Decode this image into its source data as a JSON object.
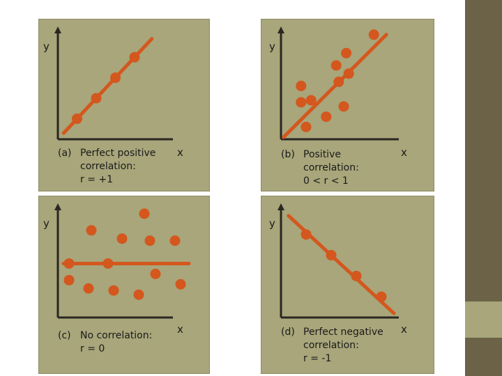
{
  "colors": {
    "panel_bg": "#a8a67a",
    "accent": "#d4571e",
    "axis": "#2a2622",
    "strip_dark": "#6b6248"
  },
  "chart_data": [
    {
      "type": "scatter",
      "y_axis_label": "y",
      "x_axis_label": "x",
      "caption": {
        "letter": "(a)",
        "lines": [
          "Perfect positive",
          "correlation:",
          "r = +1"
        ]
      },
      "points": [
        [
          1,
          1
        ],
        [
          2,
          2
        ],
        [
          3,
          3
        ],
        [
          4,
          4
        ]
      ],
      "fit_line": [
        [
          0.3,
          0.3
        ],
        [
          4.9,
          4.9
        ]
      ],
      "xlim": [
        0,
        6
      ],
      "ylim": [
        0,
        5.5
      ]
    },
    {
      "type": "scatter",
      "y_axis_label": "y",
      "x_axis_label": "x",
      "caption": {
        "letter": "(b)",
        "lines": [
          "Positive",
          "correlation:",
          "0 < r < 1"
        ]
      },
      "points": [
        [
          0.8,
          2.6
        ],
        [
          0.8,
          1.8
        ],
        [
          1.2,
          1.9
        ],
        [
          1.0,
          0.6
        ],
        [
          1.8,
          1.1
        ],
        [
          2.2,
          3.6
        ],
        [
          2.3,
          2.8
        ],
        [
          2.6,
          4.2
        ],
        [
          2.7,
          3.2
        ],
        [
          3.7,
          5.1
        ],
        [
          2.5,
          1.6
        ]
      ],
      "fit_line": [
        [
          0.1,
          0.1
        ],
        [
          4.2,
          5.1
        ]
      ],
      "xlim": [
        0,
        5
      ],
      "ylim": [
        0,
        5.5
      ]
    },
    {
      "type": "scatter",
      "y_axis_label": "y",
      "x_axis_label": "x",
      "caption": {
        "letter": "(c)",
        "lines": [
          "No correlation:",
          "r = 0"
        ]
      },
      "points": [
        [
          1.2,
          4.2
        ],
        [
          3.1,
          5.0
        ],
        [
          2.3,
          3.8
        ],
        [
          3.3,
          3.7
        ],
        [
          4.2,
          3.7
        ],
        [
          0.4,
          2.6
        ],
        [
          1.8,
          2.6
        ],
        [
          3.5,
          2.1
        ],
        [
          0.4,
          1.8
        ],
        [
          1.1,
          1.4
        ],
        [
          2.0,
          1.3
        ],
        [
          2.9,
          1.1
        ],
        [
          4.4,
          1.6
        ]
      ],
      "fit_line": [
        [
          0.2,
          2.6
        ],
        [
          4.7,
          2.6
        ]
      ],
      "xlim": [
        0,
        5
      ],
      "ylim": [
        0,
        5.5
      ]
    },
    {
      "type": "scatter",
      "y_axis_label": "y",
      "x_axis_label": "x",
      "caption": {
        "letter": "(d)",
        "lines": [
          "Perfect negative",
          "correlation:",
          "r = -1"
        ]
      },
      "points": [
        [
          1,
          4
        ],
        [
          2,
          3
        ],
        [
          3,
          2
        ],
        [
          4,
          1
        ]
      ],
      "fit_line": [
        [
          0.3,
          4.9
        ],
        [
          4.5,
          0.2
        ]
      ],
      "xlim": [
        0,
        5
      ],
      "ylim": [
        0,
        5.5
      ]
    }
  ]
}
